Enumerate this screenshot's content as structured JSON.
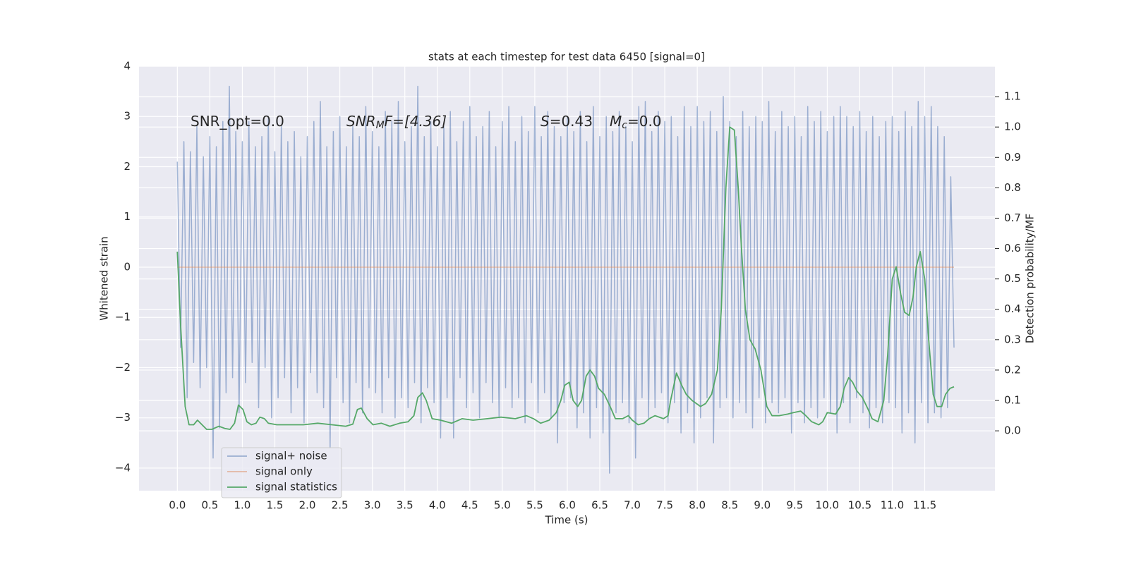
{
  "chart_data": {
    "type": "line",
    "title": "stats at each timestep for test data 6450 [signal=0]",
    "x_label": "Time (s)",
    "y_label": "Whitened strain",
    "y2_label": "Detection probability/MF",
    "grid": true,
    "legend_position": "lower left",
    "annotations": [
      {
        "parts": [
          "SNR_opt=0.0"
        ]
      },
      {
        "parts": [
          "SNR",
          "M",
          "F=[4.36]"
        ]
      },
      {
        "parts": [
          "S",
          "=0.43",
          "M",
          "c",
          "=0.0"
        ]
      }
    ],
    "xlim": [
      -0.59,
      12.58
    ],
    "xticks": [
      {
        "value": 0,
        "label": "0.0"
      },
      0.5,
      {
        "value": 1,
        "label": "1.0"
      },
      1.5,
      {
        "value": 2,
        "label": "2.0"
      },
      2.5,
      {
        "value": 3,
        "label": "3.0"
      },
      3.5,
      {
        "value": 4,
        "label": "4.0"
      },
      4.5,
      {
        "value": 5,
        "label": "5.0"
      },
      5.5,
      {
        "value": 6,
        "label": "6.0"
      },
      6.5,
      {
        "value": 7,
        "label": "7.0"
      },
      7.5,
      {
        "value": 8,
        "label": "8.0"
      },
      8.5,
      {
        "value": 9,
        "label": "9.0"
      },
      9.5,
      {
        "value": 10,
        "label": "10.0"
      },
      10.5,
      {
        "value": 11,
        "label": "11.0"
      },
      11.5
    ],
    "ylim": [
      -4.45,
      4.0
    ],
    "yticks": [
      {
        "value": -4,
        "label": "−4"
      },
      {
        "value": -3,
        "label": "−3"
      },
      {
        "value": -2,
        "label": "−2"
      },
      {
        "value": -1,
        "label": "−1"
      },
      0,
      1,
      2,
      3,
      4
    ],
    "y2lim": [
      -0.197,
      1.2
    ],
    "y2ticks": [
      {
        "value": 0,
        "label": "0.0"
      },
      0.1,
      0.2,
      0.3,
      0.4,
      0.5,
      0.6,
      0.7,
      0.8,
      0.9,
      {
        "value": 1,
        "label": "1.0"
      },
      1.1
    ],
    "series": [
      {
        "name": "signal+ noise",
        "color": "#4c72b0",
        "opacity": 0.5,
        "axis": "y",
        "x": [
          0,
          0.05,
          0.1,
          0.15,
          0.2,
          0.25,
          0.3,
          0.35,
          0.4,
          0.45,
          0.5,
          0.55,
          0.6,
          0.65,
          0.7,
          0.75,
          0.8,
          0.85,
          0.9,
          0.95,
          1,
          1.05,
          1.1,
          1.15,
          1.2,
          1.25,
          1.3,
          1.35,
          1.4,
          1.45,
          1.5,
          1.55,
          1.6,
          1.65,
          1.7,
          1.75,
          1.8,
          1.85,
          1.9,
          1.95,
          2,
          2.05,
          2.1,
          2.15,
          2.2,
          2.25,
          2.3,
          2.35,
          2.4,
          2.45,
          2.5,
          2.55,
          2.6,
          2.65,
          2.7,
          2.75,
          2.8,
          2.85,
          2.9,
          2.95,
          3,
          3.05,
          3.1,
          3.15,
          3.2,
          3.25,
          3.3,
          3.35,
          3.4,
          3.45,
          3.5,
          3.55,
          3.6,
          3.65,
          3.7,
          3.75,
          3.8,
          3.85,
          3.9,
          3.95,
          4,
          4.05,
          4.1,
          4.15,
          4.2,
          4.25,
          4.3,
          4.35,
          4.4,
          4.45,
          4.5,
          4.55,
          4.6,
          4.65,
          4.7,
          4.75,
          4.8,
          4.85,
          4.9,
          4.95,
          5,
          5.05,
          5.1,
          5.15,
          5.2,
          5.25,
          5.3,
          5.35,
          5.4,
          5.45,
          5.5,
          5.55,
          5.6,
          5.65,
          5.7,
          5.75,
          5.8,
          5.85,
          5.9,
          5.95,
          6,
          6.05,
          6.1,
          6.15,
          6.2,
          6.25,
          6.3,
          6.35,
          6.4,
          6.45,
          6.5,
          6.55,
          6.6,
          6.65,
          6.7,
          6.75,
          6.8,
          6.85,
          6.9,
          6.95,
          7,
          7.05,
          7.1,
          7.15,
          7.2,
          7.25,
          7.3,
          7.35,
          7.4,
          7.45,
          7.5,
          7.55,
          7.6,
          7.65,
          7.7,
          7.75,
          7.8,
          7.85,
          7.9,
          7.95,
          8,
          8.05,
          8.1,
          8.15,
          8.2,
          8.25,
          8.3,
          8.35,
          8.4,
          8.45,
          8.5,
          8.55,
          8.6,
          8.65,
          8.7,
          8.75,
          8.8,
          8.85,
          8.9,
          8.95,
          9,
          9.05,
          9.1,
          9.15,
          9.2,
          9.25,
          9.3,
          9.35,
          9.4,
          9.45,
          9.5,
          9.55,
          9.6,
          9.65,
          9.7,
          9.75,
          9.8,
          9.85,
          9.9,
          9.95,
          10,
          10.05,
          10.1,
          10.15,
          10.2,
          10.25,
          10.3,
          10.35,
          10.4,
          10.45,
          10.5,
          10.55,
          10.6,
          10.65,
          10.7,
          10.75,
          10.8,
          10.85,
          10.9,
          10.95,
          11,
          11.05,
          11.1,
          11.15,
          11.2,
          11.25,
          11.3,
          11.35,
          11.4,
          11.45,
          11.5,
          11.55,
          11.6,
          11.65,
          11.7,
          11.75,
          11.8,
          11.85,
          11.9,
          11.95
        ],
        "values": [
          2.1,
          -1.6,
          2.5,
          -2.6,
          2.3,
          -1.9,
          2.8,
          -2.4,
          2.2,
          -2.0,
          2.6,
          -3.8,
          2.4,
          -3.2,
          2.9,
          -2.5,
          3.6,
          -2.2,
          2.7,
          -2.9,
          2.5,
          -2.3,
          2.9,
          -1.9,
          2.4,
          -2.8,
          2.6,
          -2.0,
          3.0,
          -3.0,
          2.3,
          -2.6,
          2.8,
          -2.2,
          2.5,
          -2.9,
          2.7,
          -2.4,
          2.2,
          -3.1,
          2.6,
          -2.1,
          2.9,
          -2.5,
          3.3,
          -2.8,
          2.4,
          -3.6,
          2.7,
          -2.2,
          3.0,
          -2.7,
          2.4,
          -3.1,
          2.8,
          -2.3,
          2.6,
          -2.9,
          3.2,
          -2.4,
          2.7,
          -2.5,
          2.4,
          -2.9,
          3.1,
          -2.2,
          2.9,
          -3.0,
          3.3,
          -2.6,
          2.5,
          -2.8,
          2.8,
          -2.3,
          3.6,
          -3.1,
          2.6,
          -2.4,
          2.9,
          -2.7,
          2.4,
          -3.4,
          2.8,
          -2.6,
          3.1,
          -3.4,
          2.5,
          -2.2,
          2.9,
          -2.8,
          3.2,
          -2.5,
          2.6,
          -3.0,
          2.8,
          -2.3,
          3.1,
          -2.7,
          2.4,
          -3.0,
          2.9,
          -2.4,
          3.2,
          -2.8,
          2.5,
          -2.6,
          3.0,
          -3.1,
          2.7,
          -2.3,
          3.2,
          -2.9,
          2.6,
          -2.5,
          3.1,
          -3.0,
          2.8,
          -3.5,
          2.6,
          -2.7,
          3.0,
          -2.6,
          2.7,
          -3.2,
          3.1,
          -2.9,
          2.5,
          -3.4,
          3.2,
          -2.8,
          2.6,
          -3.3,
          3.0,
          -4.1,
          2.7,
          -2.9,
          3.1,
          -2.7,
          2.8,
          -3.1,
          2.5,
          -3.8,
          3.2,
          -2.6,
          3.3,
          -3.0,
          2.7,
          -2.8,
          3.1,
          -2.5,
          2.9,
          -3.1,
          3.0,
          -2.7,
          2.6,
          -3.3,
          3.2,
          -2.9,
          2.8,
          -3.5,
          3.2,
          -3.0,
          2.9,
          -2.6,
          3.1,
          -3.5,
          2.7,
          -2.8,
          3.4,
          -2.6,
          2.9,
          -3.0,
          2.6,
          -2.7,
          3.1,
          -2.9,
          2.8,
          -3.2,
          3.0,
          -2.6,
          2.9,
          -3.1,
          3.3,
          -2.7,
          2.7,
          -2.9,
          3.1,
          -2.6,
          2.8,
          -3.3,
          3.0,
          -2.7,
          2.6,
          -3.1,
          3.2,
          -2.8,
          2.9,
          -3.0,
          3.1,
          -2.6,
          2.7,
          -2.9,
          3.0,
          -3.3,
          3.2,
          -2.7,
          3.0,
          -3.1,
          2.8,
          -2.6,
          3.1,
          -2.9,
          2.7,
          -3.2,
          3.0,
          -2.8,
          2.6,
          -3.1,
          2.9,
          -2.7,
          3.0,
          -2.8,
          2.7,
          -3.3,
          3.1,
          -2.9,
          2.8,
          -3.5,
          3.3,
          -2.7,
          3.0,
          -3.1,
          3.2,
          -2.9,
          2.8,
          -3.0,
          2.6,
          -2.8,
          1.8,
          -1.6
        ]
      },
      {
        "name": "signal only",
        "color": "#dd8452",
        "opacity": 0.5,
        "axis": "y",
        "x": [
          0,
          11.95
        ],
        "values": [
          0,
          0
        ]
      },
      {
        "name": "signal statistics",
        "color": "#55a868",
        "opacity": 1,
        "axis": "y2",
        "x": [
          0.0,
          0.05,
          0.12,
          0.18,
          0.25,
          0.31,
          0.45,
          0.53,
          0.64,
          0.73,
          0.81,
          0.88,
          0.94,
          1.01,
          1.07,
          1.14,
          1.21,
          1.27,
          1.34,
          1.4,
          1.53,
          1.73,
          1.94,
          2.16,
          2.38,
          2.59,
          2.7,
          2.77,
          2.83,
          2.92,
          3.01,
          3.14,
          3.27,
          3.42,
          3.55,
          3.64,
          3.7,
          3.77,
          3.83,
          3.92,
          4.05,
          4.22,
          4.38,
          4.55,
          4.77,
          4.98,
          5.2,
          5.37,
          5.48,
          5.59,
          5.72,
          5.83,
          5.9,
          5.96,
          6.03,
          6.09,
          6.16,
          6.22,
          6.29,
          6.35,
          6.42,
          6.48,
          6.57,
          6.66,
          6.74,
          6.85,
          6.94,
          7.0,
          7.09,
          7.18,
          7.26,
          7.35,
          7.48,
          7.55,
          7.59,
          7.68,
          7.76,
          7.83,
          7.92,
          8.05,
          8.13,
          8.22,
          8.31,
          8.37,
          8.44,
          8.5,
          8.57,
          8.63,
          8.68,
          8.74,
          8.81,
          8.89,
          8.98,
          9.07,
          9.15,
          9.26,
          9.39,
          9.48,
          9.59,
          9.67,
          9.76,
          9.87,
          9.93,
          10.0,
          10.13,
          10.2,
          10.26,
          10.33,
          10.39,
          10.46,
          10.54,
          10.63,
          10.69,
          10.78,
          10.87,
          10.93,
          11.0,
          11.06,
          11.13,
          11.19,
          11.26,
          11.32,
          11.37,
          11.43,
          11.5,
          11.56,
          11.63,
          11.69,
          11.76,
          11.82,
          11.89,
          11.95
        ],
        "values": [
          0.59,
          0.35,
          0.08,
          0.02,
          0.02,
          0.035,
          0.005,
          0.005,
          0.015,
          0.008,
          0.005,
          0.025,
          0.085,
          0.07,
          0.03,
          0.02,
          0.025,
          0.045,
          0.04,
          0.025,
          0.02,
          0.02,
          0.02,
          0.025,
          0.02,
          0.015,
          0.022,
          0.07,
          0.075,
          0.04,
          0.02,
          0.025,
          0.015,
          0.025,
          0.03,
          0.05,
          0.11,
          0.125,
          0.1,
          0.04,
          0.035,
          0.025,
          0.04,
          0.035,
          0.04,
          0.045,
          0.04,
          0.05,
          0.04,
          0.025,
          0.035,
          0.06,
          0.1,
          0.15,
          0.16,
          0.1,
          0.08,
          0.1,
          0.18,
          0.2,
          0.18,
          0.14,
          0.12,
          0.08,
          0.04,
          0.04,
          0.05,
          0.035,
          0.02,
          0.025,
          0.04,
          0.05,
          0.04,
          0.05,
          0.1,
          0.19,
          0.15,
          0.12,
          0.1,
          0.08,
          0.09,
          0.12,
          0.2,
          0.4,
          0.8,
          1.0,
          0.99,
          0.8,
          0.6,
          0.4,
          0.3,
          0.27,
          0.2,
          0.08,
          0.05,
          0.05,
          0.055,
          0.06,
          0.065,
          0.05,
          0.03,
          0.02,
          0.03,
          0.06,
          0.055,
          0.08,
          0.14,
          0.175,
          0.16,
          0.13,
          0.11,
          0.07,
          0.04,
          0.03,
          0.1,
          0.25,
          0.5,
          0.54,
          0.45,
          0.39,
          0.38,
          0.44,
          0.54,
          0.59,
          0.5,
          0.3,
          0.12,
          0.08,
          0.08,
          0.12,
          0.14,
          0.145
        ]
      }
    ]
  }
}
